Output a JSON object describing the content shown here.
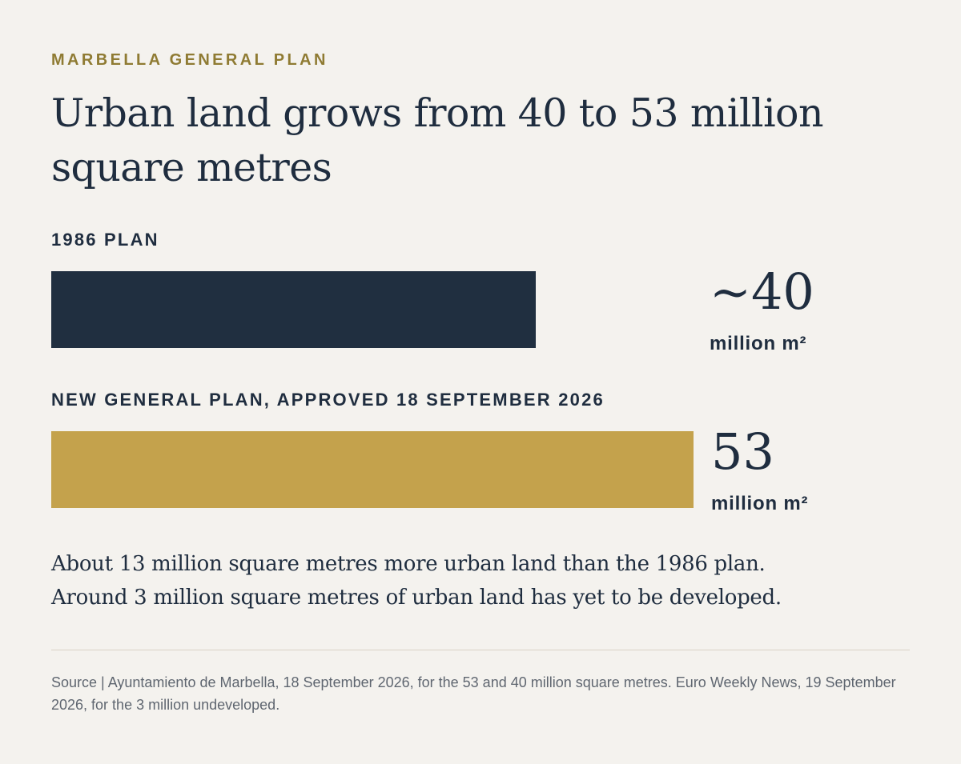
{
  "kicker": "MARBELLA GENERAL PLAN",
  "title": "Urban land grows from 40 to 53 million square metres",
  "chart_data": {
    "type": "bar",
    "orientation": "horizontal",
    "unit": "million m²",
    "xlim": [
      0,
      53
    ],
    "bars": [
      {
        "label": "1986 PLAN",
        "value": 40,
        "value_label": "~40",
        "unit_label": "million m²",
        "color": "#202f40"
      },
      {
        "label": "NEW GENERAL PLAN, APPROVED 18 SEPTEMBER 2026",
        "value": 53,
        "value_label": "53",
        "unit_label": "million m²",
        "color": "#c4a24c"
      }
    ]
  },
  "summary": [
    "About 13 million square metres more urban land than the 1986 plan.",
    "Around 3 million square metres of urban land has yet to be developed."
  ],
  "source": "Source | Ayuntamiento de Marbella, 18 September 2026, for the 53 and 40 million square metres. Euro Weekly News, 19 September 2026, for the 3 million undeveloped."
}
